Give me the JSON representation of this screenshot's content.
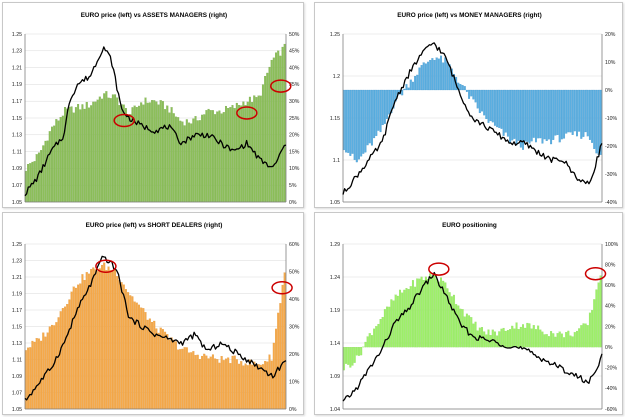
{
  "colors": {
    "price_line": "#000000",
    "highlight_circle": "#cc0000",
    "axis": "#7f7f7f",
    "grid": "#d9d9d9"
  },
  "panels": [
    {
      "id": "assets-managers",
      "title": "EURO price (left) vs ASSETS MANAGERS (right)",
      "bar_color": "#8cbf5a",
      "bar_stroke": "#6a9c3c",
      "left_axis": {
        "min": 1.05,
        "max": 1.25,
        "ticks": [
          "1.25",
          "1.23",
          "1.21",
          "1.19",
          "1.17",
          "1.15",
          "1.13",
          "1.11",
          "1.09",
          "1.07",
          "1.05"
        ]
      },
      "right_axis": {
        "min": 0,
        "max": 50,
        "ticks": [
          "50%",
          "45%",
          "40%",
          "35%",
          "30%",
          "25%",
          "20%",
          "15%",
          "10%",
          "5%",
          "0%"
        ]
      },
      "highlights": [
        {
          "t": 0.38,
          "v": 1.147
        },
        {
          "t": 0.85,
          "v": 1.156
        },
        {
          "t": 0.98,
          "v": 1.188
        }
      ]
    },
    {
      "id": "money-managers",
      "title": "EURO price (left) vs MONEY MANAGERS (right)",
      "bar_color": "#5aaee0",
      "bar_stroke": "#3a8cc4",
      "left_axis": {
        "min": 1.05,
        "max": 1.25,
        "ticks": [
          "1.25",
          "1.2",
          "1.15",
          "1.1",
          "1.05"
        ]
      },
      "right_axis": {
        "min": -40,
        "max": 20,
        "ticks": [
          "20%",
          "10%",
          "0%",
          "-10%",
          "-20%",
          "-30%",
          "-40%"
        ]
      },
      "highlights": []
    },
    {
      "id": "short-dealers",
      "title": "EURO price (left) vs SHORT DEALERS (right)",
      "bar_color": "#f5a94a",
      "bar_stroke": "#d98c2e",
      "left_axis": {
        "min": 1.05,
        "max": 1.25,
        "ticks": [
          "1.25",
          "1.23",
          "1.21",
          "1.19",
          "1.17",
          "1.15",
          "1.13",
          "1.11",
          "1.09",
          "1.07",
          "1.05"
        ]
      },
      "right_axis": {
        "min": 0,
        "max": 60,
        "ticks": [
          "60%",
          "50%",
          "40%",
          "30%",
          "20%",
          "10%",
          "0%"
        ]
      },
      "highlights": [
        {
          "t": 0.31,
          "v": 1.223
        },
        {
          "t": 0.985,
          "v": 1.197
        }
      ]
    },
    {
      "id": "euro-positioning",
      "title": "EURO positioning",
      "bar_color": "#9ef06a",
      "bar_stroke": "#7ed04a",
      "left_axis": {
        "min": 1.04,
        "max": 1.29,
        "ticks": [
          "1.29",
          "1.24",
          "1.19",
          "1.14",
          "1.09",
          "1.04"
        ]
      },
      "right_axis": {
        "min": -60,
        "max": 100,
        "ticks": [
          "100%",
          "80%",
          "60%",
          "40%",
          "20%",
          "0%",
          "-20%",
          "-40%",
          "-60%"
        ]
      },
      "highlights": [
        {
          "t": 0.37,
          "v": 1.252
        },
        {
          "t": 0.975,
          "v": 1.245
        }
      ]
    }
  ],
  "chart_data": [
    {
      "type": "bar",
      "title": "EURO price (left) vs ASSETS MANAGERS (right)",
      "ylim_left": [
        1.05,
        1.25
      ],
      "ylim_right": [
        0,
        50
      ],
      "series": [
        {
          "axis": "right",
          "t": [
            0,
            0.05,
            0.1,
            0.15,
            0.2,
            0.25,
            0.3,
            0.35,
            0.4,
            0.45,
            0.5,
            0.55,
            0.6,
            0.65,
            0.7,
            0.75,
            0.8,
            0.85,
            0.9,
            0.95,
            1.0
          ],
          "values": [
            10,
            14,
            22,
            27,
            28,
            29,
            32,
            31,
            26,
            30,
            30,
            28,
            24,
            24,
            27,
            27,
            28,
            30,
            31,
            42,
            46
          ]
        },
        {
          "axis": "left",
          "t": [
            0,
            0.05,
            0.1,
            0.15,
            0.17,
            0.2,
            0.25,
            0.3,
            0.33,
            0.37,
            0.4,
            0.45,
            0.5,
            0.55,
            0.6,
            0.65,
            0.7,
            0.75,
            0.8,
            0.85,
            0.9,
            0.95,
            1.0
          ],
          "values": [
            1.06,
            1.08,
            1.11,
            1.13,
            1.17,
            1.19,
            1.2,
            1.235,
            1.22,
            1.16,
            1.15,
            1.14,
            1.135,
            1.14,
            1.12,
            1.13,
            1.13,
            1.12,
            1.11,
            1.12,
            1.1,
            1.09,
            1.12
          ]
        }
      ]
    },
    {
      "type": "bar",
      "title": "EURO price (left) vs MONEY MANAGERS (right)",
      "ylim_left": [
        1.05,
        1.25
      ],
      "ylim_right": [
        -40,
        20
      ],
      "series": [
        {
          "axis": "right",
          "t": [
            0,
            0.05,
            0.1,
            0.15,
            0.2,
            0.25,
            0.3,
            0.35,
            0.4,
            0.45,
            0.5,
            0.55,
            0.6,
            0.65,
            0.7,
            0.75,
            0.8,
            0.85,
            0.9,
            0.95,
            1.0
          ],
          "values": [
            -20,
            -26,
            -20,
            -14,
            -4,
            2,
            8,
            12,
            10,
            3,
            -4,
            -10,
            -14,
            -18,
            -20,
            -18,
            -18,
            -17,
            -16,
            -16,
            -24
          ]
        },
        {
          "axis": "left",
          "t": [
            0,
            0.05,
            0.1,
            0.15,
            0.2,
            0.25,
            0.3,
            0.35,
            0.4,
            0.45,
            0.5,
            0.55,
            0.6,
            0.65,
            0.7,
            0.75,
            0.8,
            0.85,
            0.9,
            0.95,
            1.0
          ],
          "values": [
            1.06,
            1.08,
            1.1,
            1.12,
            1.17,
            1.2,
            1.225,
            1.24,
            1.22,
            1.18,
            1.15,
            1.14,
            1.13,
            1.12,
            1.12,
            1.11,
            1.1,
            1.1,
            1.08,
            1.07,
            1.12
          ]
        }
      ]
    },
    {
      "type": "bar",
      "title": "EURO price (left) vs SHORT DEALERS (right)",
      "ylim_left": [
        1.05,
        1.25
      ],
      "ylim_right": [
        0,
        60
      ],
      "series": [
        {
          "axis": "right",
          "t": [
            0,
            0.05,
            0.1,
            0.15,
            0.2,
            0.25,
            0.3,
            0.35,
            0.4,
            0.45,
            0.5,
            0.55,
            0.6,
            0.65,
            0.7,
            0.75,
            0.8,
            0.85,
            0.9,
            0.95,
            1.0
          ],
          "values": [
            22,
            25,
            30,
            38,
            46,
            50,
            52,
            50,
            42,
            36,
            30,
            26,
            22,
            20,
            19,
            18,
            18,
            17,
            16,
            19,
            50
          ]
        },
        {
          "axis": "left",
          "t": [
            0,
            0.05,
            0.1,
            0.15,
            0.2,
            0.25,
            0.3,
            0.35,
            0.4,
            0.45,
            0.5,
            0.55,
            0.6,
            0.65,
            0.7,
            0.75,
            0.8,
            0.85,
            0.9,
            0.95,
            1.0
          ],
          "values": [
            1.06,
            1.08,
            1.1,
            1.13,
            1.17,
            1.2,
            1.235,
            1.22,
            1.16,
            1.15,
            1.14,
            1.135,
            1.13,
            1.14,
            1.12,
            1.13,
            1.12,
            1.11,
            1.1,
            1.09,
            1.11
          ]
        }
      ]
    },
    {
      "type": "bar",
      "title": "EURO positioning",
      "ylim_left": [
        1.04,
        1.29
      ],
      "ylim_right": [
        -60,
        100
      ],
      "series": [
        {
          "axis": "right",
          "t": [
            0,
            0.05,
            0.1,
            0.15,
            0.2,
            0.25,
            0.3,
            0.35,
            0.4,
            0.45,
            0.5,
            0.55,
            0.6,
            0.65,
            0.7,
            0.75,
            0.8,
            0.85,
            0.9,
            0.95,
            1.0
          ],
          "values": [
            -20,
            -12,
            12,
            30,
            48,
            58,
            66,
            70,
            60,
            40,
            24,
            14,
            14,
            20,
            22,
            18,
            14,
            12,
            14,
            22,
            72
          ]
        },
        {
          "axis": "left",
          "t": [
            0,
            0.05,
            0.1,
            0.15,
            0.2,
            0.25,
            0.3,
            0.35,
            0.4,
            0.45,
            0.5,
            0.55,
            0.6,
            0.65,
            0.7,
            0.75,
            0.8,
            0.85,
            0.9,
            0.95,
            1.0
          ],
          "values": [
            1.05,
            1.07,
            1.1,
            1.13,
            1.17,
            1.19,
            1.22,
            1.245,
            1.21,
            1.17,
            1.15,
            1.145,
            1.14,
            1.135,
            1.13,
            1.12,
            1.11,
            1.1,
            1.09,
            1.08,
            1.12
          ]
        }
      ]
    }
  ]
}
